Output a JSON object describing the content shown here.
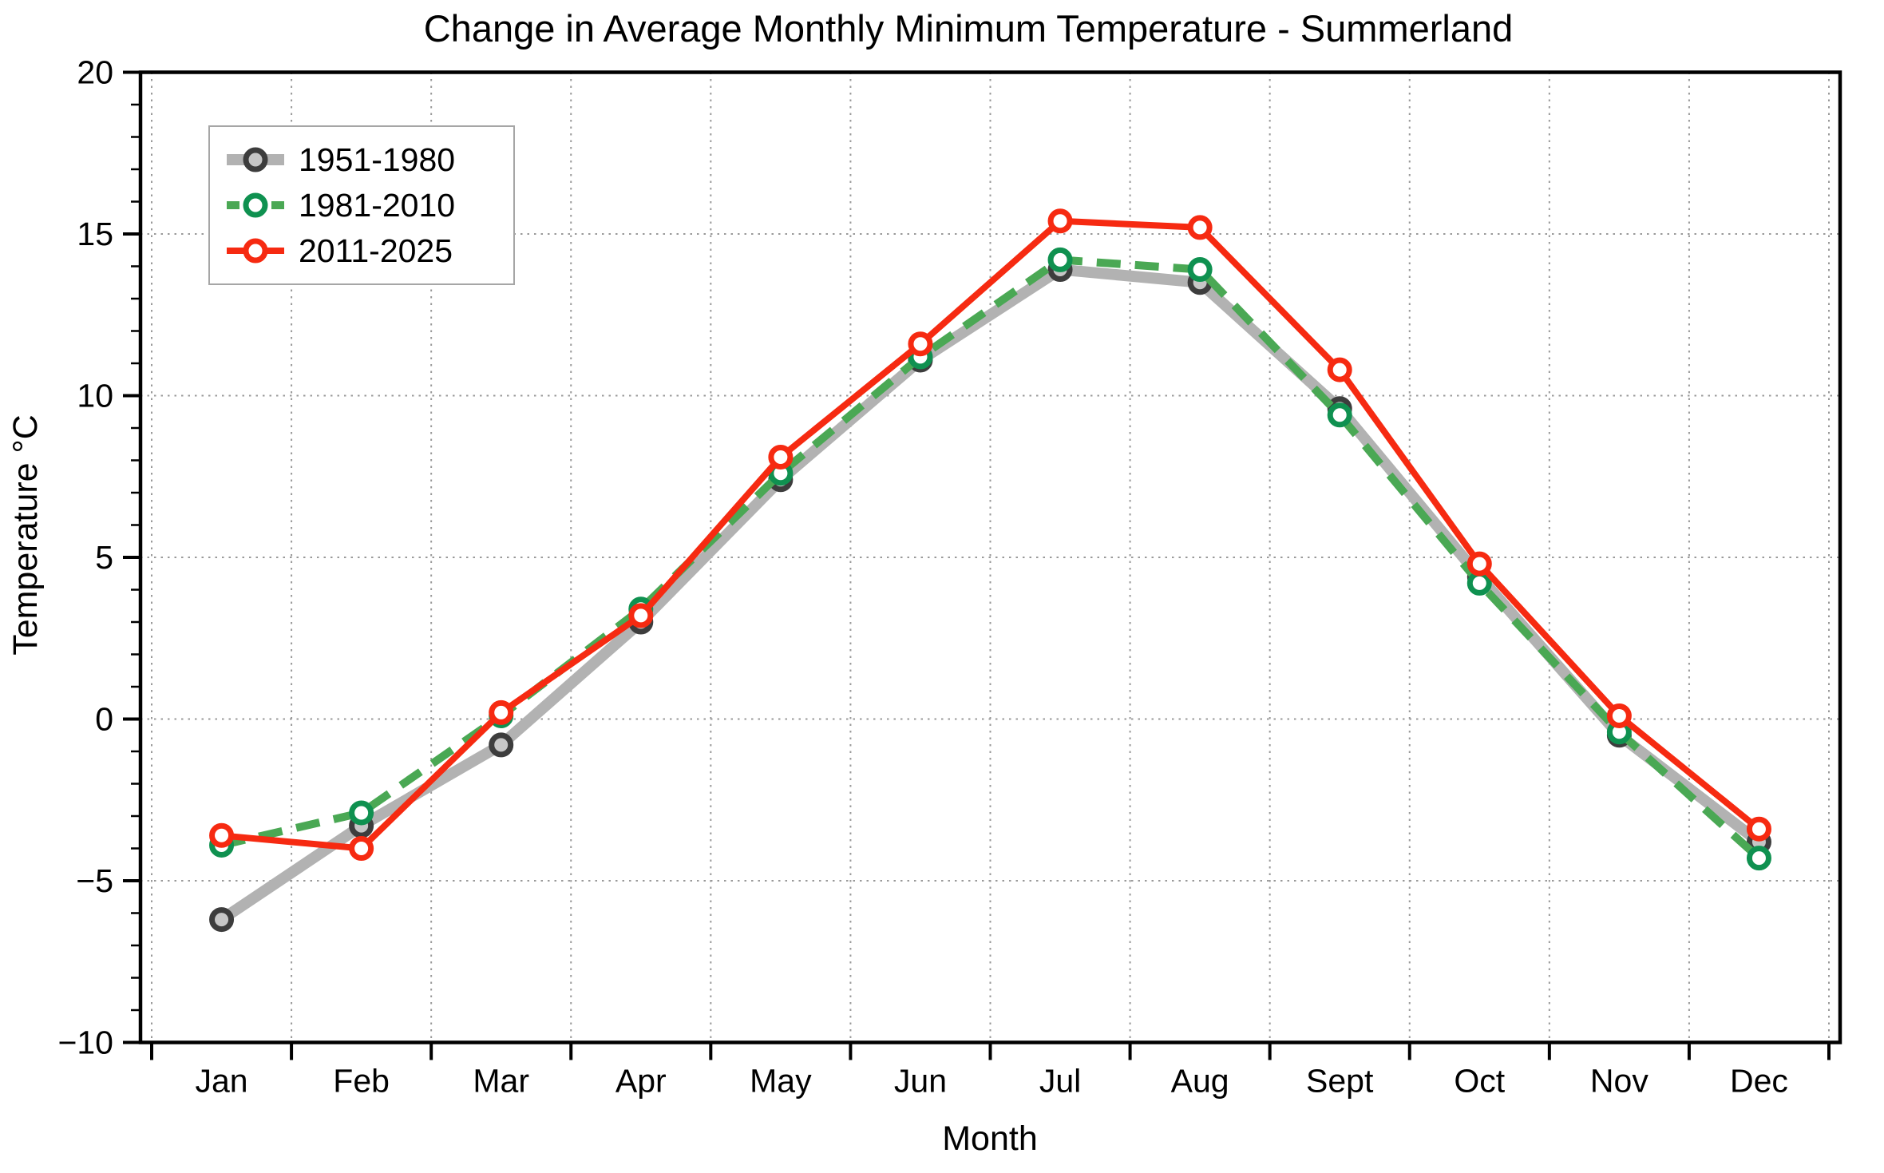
{
  "title": "Change in Average Monthly Minimum Temperature - Summerland",
  "chart_data": {
    "type": "line",
    "title": "Change in Average Monthly Minimum Temperature - Summerland",
    "xlabel": "Month",
    "ylabel": "Temperature °C",
    "categories": [
      "Jan",
      "Feb",
      "Mar",
      "Apr",
      "May",
      "Jun",
      "Jul",
      "Aug",
      "Sept",
      "Oct",
      "Nov",
      "Dec"
    ],
    "ylim": [
      -10,
      20
    ],
    "y_major_step": 5,
    "y_minor_step": 1,
    "y_tick_values": [
      20,
      15,
      10,
      5,
      0,
      -5,
      -10
    ],
    "y_tick_labels": [
      "20",
      "15",
      "10",
      "5",
      "0",
      "−5",
      "−10"
    ],
    "grid": true,
    "grid_style": "dotted",
    "legend_position": "upper-left",
    "series": [
      {
        "name": "1951-1980",
        "color": "#b2b2b2",
        "marker": "circle-open",
        "marker_edge": "#3d3d3d",
        "marker_face": "#c6c6c6",
        "line_style": "solid",
        "values": [
          -6.2,
          -3.3,
          -0.8,
          3.0,
          7.4,
          11.1,
          13.9,
          13.5,
          9.6,
          4.4,
          -0.5,
          -3.8
        ]
      },
      {
        "name": "1981-2010",
        "color": "#4aa854",
        "marker": "circle-open",
        "marker_edge": "#0f9150",
        "marker_face": "#ffffff",
        "line_style": "dashed",
        "values": [
          -3.9,
          -2.9,
          0.1,
          3.4,
          7.6,
          11.2,
          14.2,
          13.9,
          9.4,
          4.2,
          -0.4,
          -4.3
        ]
      },
      {
        "name": "2011-2025",
        "color": "#f62a11",
        "marker": "circle-open",
        "marker_edge": "#f62a11",
        "marker_face": "#ffffff",
        "line_style": "solid",
        "values": [
          -3.6,
          -4.0,
          0.2,
          3.2,
          8.1,
          11.6,
          15.4,
          15.2,
          10.8,
          4.8,
          0.1,
          -3.4
        ]
      }
    ]
  }
}
